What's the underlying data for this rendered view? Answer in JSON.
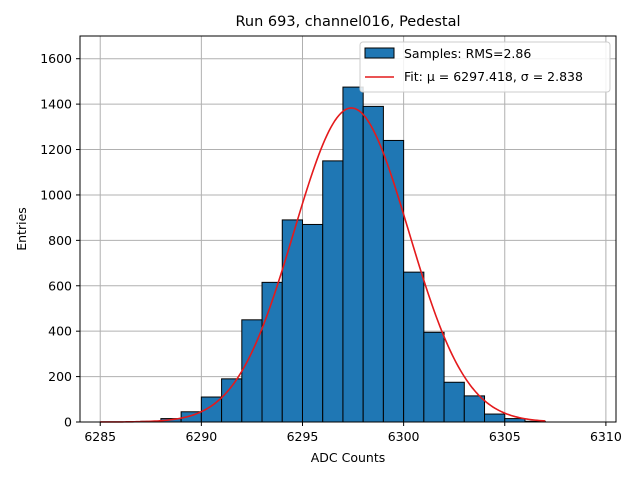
{
  "chart_data": {
    "type": "bar",
    "title": "Run 693, channel016, Pedestal",
    "xlabel": "ADC Counts",
    "ylabel": "Entries",
    "xlim": [
      6284,
      6310.5
    ],
    "ylim": [
      0,
      1700
    ],
    "xticks": [
      6285,
      6290,
      6295,
      6300,
      6305,
      6310
    ],
    "yticks": [
      0,
      200,
      400,
      600,
      800,
      1000,
      1200,
      1400,
      1600
    ],
    "grid": true,
    "legend_position": "top-right",
    "bins": {
      "edges": [
        6287,
        6288,
        6289,
        6290,
        6291,
        6292,
        6293,
        6294,
        6295,
        6296,
        6297,
        6298,
        6299,
        6300,
        6301,
        6302,
        6303,
        6304,
        6305,
        6306,
        6307
      ],
      "counts": [
        3,
        15,
        45,
        110,
        190,
        450,
        615,
        890,
        870,
        1150,
        1475,
        1390,
        1240,
        660,
        395,
        175,
        115,
        35,
        15,
        3
      ]
    },
    "fit": {
      "mu": 6297.418,
      "sigma": 2.838,
      "amplitude": 1383,
      "x_range": [
        6285,
        6307
      ]
    },
    "colors": {
      "bar_fill": "#1f77b4",
      "bar_edge": "#000000",
      "fit_line": "#e41a1c",
      "grid": "#b0b0b0"
    },
    "legend": [
      {
        "label": "Samples: RMS=2.86",
        "kind": "patch"
      },
      {
        "label": "Fit: μ = 6297.418, σ = 2.838",
        "kind": "line"
      }
    ]
  }
}
